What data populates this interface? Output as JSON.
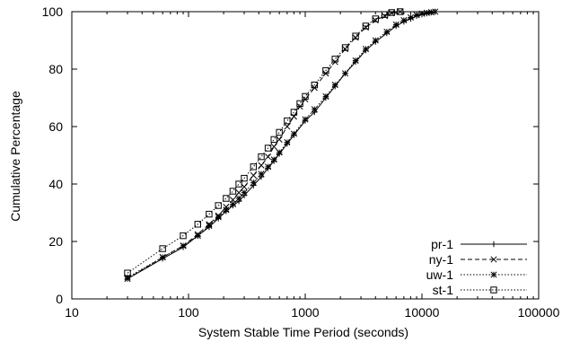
{
  "chart_data": {
    "type": "line",
    "title": "",
    "xlabel": "System Stable Time Period (seconds)",
    "ylabel": "Cumulative Percentage",
    "xscale": "log",
    "xlim": [
      10,
      100000
    ],
    "ylim": [
      0,
      100
    ],
    "xticks": [
      10,
      100,
      1000,
      10000,
      100000
    ],
    "xtick_labels": [
      "10",
      "100",
      "1000",
      "10000",
      "100000"
    ],
    "yticks": [
      0,
      20,
      40,
      60,
      80,
      100
    ],
    "ytick_labels": [
      "0",
      "20",
      "40",
      "60",
      "80",
      "100"
    ],
    "grid": false,
    "legend_position": "bottom-right",
    "series": [
      {
        "name": "pr-1",
        "marker": "plus",
        "dash": "solid",
        "x": [
          30,
          60,
          90,
          120,
          150,
          180,
          210,
          240,
          270,
          300,
          360,
          420,
          480,
          540,
          600,
          700,
          800,
          1000,
          1200,
          1500,
          1800,
          2200,
          2700,
          3300,
          4000,
          5000,
          6000,
          7000,
          8000,
          9000,
          10000,
          11000,
          12000,
          13000
        ],
        "y": [
          7,
          14,
          18,
          22,
          25,
          28,
          30.5,
          32.5,
          34,
          36,
          39.5,
          42.5,
          45.5,
          48,
          50.5,
          54,
          57,
          62,
          65,
          70,
          74,
          78.5,
          82.5,
          86.5,
          89.5,
          92.5,
          95,
          96.5,
          97.5,
          98.5,
          99,
          99.4,
          99.7,
          100
        ]
      },
      {
        "name": "ny-1",
        "marker": "x",
        "dash": "dashed",
        "x": [
          30,
          60,
          90,
          120,
          150,
          180,
          210,
          240,
          270,
          300,
          360,
          420,
          480,
          540,
          600,
          700,
          800,
          900,
          1000,
          1200,
          1500,
          1800,
          2200,
          2700,
          3300,
          4000,
          4800,
          5500,
          6500
        ],
        "y": [
          7,
          14.5,
          18.5,
          22.5,
          26,
          29,
          32,
          34.5,
          37,
          39,
          43,
          46.5,
          49.5,
          53,
          55.5,
          60,
          63.5,
          67,
          69.5,
          73.5,
          78.5,
          82.5,
          87,
          91,
          94.5,
          97,
          98.5,
          99.5,
          100
        ]
      },
      {
        "name": "uw-1",
        "marker": "star",
        "dash": "dotted",
        "x": [
          30,
          60,
          90,
          120,
          150,
          180,
          210,
          240,
          270,
          300,
          360,
          420,
          480,
          540,
          600,
          700,
          800,
          1000,
          1200,
          1500,
          1800,
          2200,
          2700,
          3300,
          4000,
          5000,
          6000,
          7000,
          8000,
          9000,
          10000,
          11000,
          12000,
          13000
        ],
        "y": [
          7.5,
          14.5,
          18.5,
          22,
          25.5,
          28.5,
          31,
          33,
          35,
          37,
          40.5,
          43.5,
          46,
          48.5,
          51,
          54.5,
          57.5,
          62.5,
          66,
          70.5,
          74.5,
          78.5,
          83,
          87,
          90,
          93,
          95.5,
          97,
          98,
          98.8,
          99.3,
          99.6,
          99.8,
          100
        ]
      },
      {
        "name": "st-1",
        "marker": "square",
        "dash": "dotted",
        "x": [
          30,
          60,
          90,
          120,
          150,
          180,
          210,
          240,
          270,
          300,
          360,
          420,
          480,
          540,
          600,
          700,
          800,
          900,
          1000,
          1200,
          1500,
          1800,
          2200,
          2700,
          3300,
          4000,
          4800,
          5500,
          6500
        ],
        "y": [
          9,
          17.5,
          22,
          26,
          29.5,
          32.5,
          35,
          37.5,
          40,
          42,
          46,
          49.5,
          52.5,
          55.5,
          58,
          62,
          65,
          68,
          70.5,
          74.5,
          79.5,
          83.5,
          87.5,
          91.5,
          95,
          97.5,
          99,
          99.7,
          100
        ]
      }
    ]
  }
}
